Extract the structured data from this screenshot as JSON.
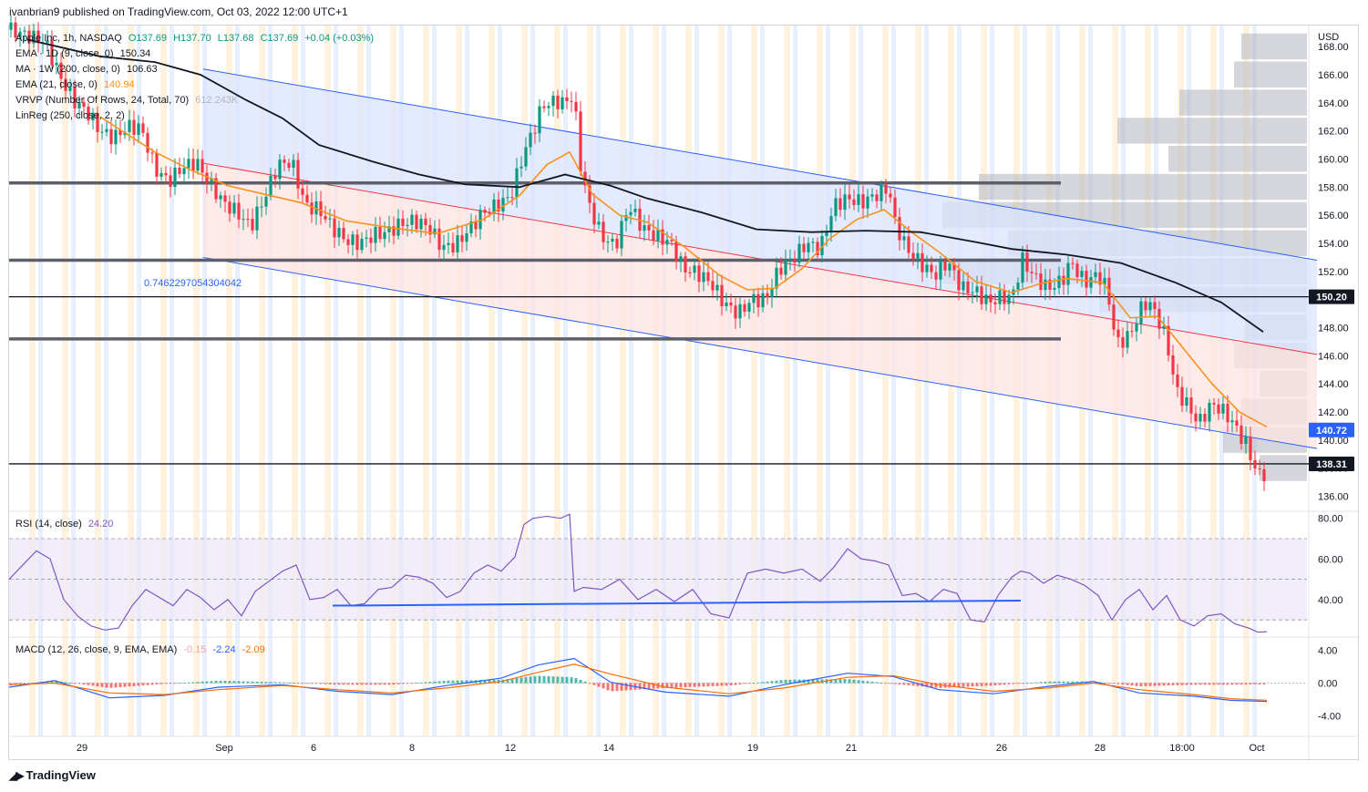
{
  "header": {
    "publish_line": "ivanbrian9 published on TradingView.com, Oct 03, 2022 12:00 UTC+1"
  },
  "legend": {
    "symbol": "Apple Inc, 1h, NASDAQ",
    "ohlc": {
      "open": "O137.69",
      "high": "H137.70",
      "low": "L137.68",
      "close": "C137.69",
      "change": "+0.04 (+0.03%)"
    },
    "ema9": {
      "label": "EMA · 1D (9, close, 0)",
      "value": "150.34"
    },
    "ma200": {
      "label": "MA · 1W (200, close, 0)",
      "value": "106.63"
    },
    "ema21": {
      "label": "EMA (21, close, 0)",
      "value": "140.94"
    },
    "vrvp": {
      "label": "VRVP (Number Of Rows, 24, Total, 70)",
      "value": "612.243K"
    },
    "linreg": {
      "label": "LinReg (250, close, 2, 2)"
    }
  },
  "rsi_legend": {
    "label": "RSI (14, close)",
    "value": "24.20"
  },
  "macd_legend": {
    "label": "MACD (12, 26, close, 9, EMA, EMA)",
    "hist": "-0.15",
    "macd": "-2.24",
    "signal": "-2.09"
  },
  "annotations": {
    "linreg_coef": "0.7462297054304042"
  },
  "footer": {
    "brand": "TradingView",
    "logo_icon": "tradingview-logo-icon"
  },
  "colors": {
    "bull": "#089981",
    "bear": "#f23645",
    "ema21": "#f7931a",
    "ma": "#131722",
    "channel_line": "#2962ff",
    "band_blue": "#dbe4ff",
    "band_red": "#ffe3e3",
    "rsi_line": "#7e57c2",
    "macd_line": "#2962ff",
    "signal_line": "#ff6d00",
    "vp_bar": "#b2b5be"
  },
  "chart_data": [
    {
      "type": "candlestick",
      "panel": "price",
      "currency": "USD",
      "y_ticks": [
        168,
        166,
        164,
        162,
        160,
        158,
        156,
        154,
        152,
        150,
        148,
        146,
        144,
        142,
        140,
        138,
        136
      ],
      "ylim": [
        135,
        169.5
      ],
      "x_ticks": [
        "29",
        "Sep",
        "6",
        "8",
        "12",
        "14",
        "19",
        "21",
        "26",
        "28",
        "18:00",
        "Oct"
      ],
      "price_labels": [
        "150.20",
        "140.72",
        "138.31"
      ],
      "horizontal_levels": [
        {
          "price": 158.3,
          "style": "thick-gray"
        },
        {
          "price": 152.8,
          "style": "thick-gray"
        },
        {
          "price": 147.2,
          "style": "thick-gray"
        },
        {
          "price": 150.2,
          "style": "thin-black"
        },
        {
          "price": 138.31,
          "style": "thin-black"
        }
      ],
      "close_path": [
        [
          0,
          169.2
        ],
        [
          20,
          168.8
        ],
        [
          40,
          168.3
        ],
        [
          55,
          166
        ],
        [
          70,
          164.2
        ],
        [
          85,
          163.4
        ],
        [
          100,
          162
        ],
        [
          115,
          161.5
        ],
        [
          130,
          162.3
        ],
        [
          145,
          162.2
        ],
        [
          160,
          159.3
        ],
        [
          175,
          158.4
        ],
        [
          190,
          159.4
        ],
        [
          205,
          159.8
        ],
        [
          220,
          158.3
        ],
        [
          235,
          156.9
        ],
        [
          250,
          156.2
        ],
        [
          265,
          155.2
        ],
        [
          280,
          157.2
        ],
        [
          295,
          159.6
        ],
        [
          310,
          159.8
        ],
        [
          325,
          156.7
        ],
        [
          340,
          156.4
        ],
        [
          355,
          155.1
        ],
        [
          370,
          154.2
        ],
        [
          385,
          154.0
        ],
        [
          400,
          154.6
        ],
        [
          415,
          154.8
        ],
        [
          430,
          155.4
        ],
        [
          445,
          155.6
        ],
        [
          460,
          155.2
        ],
        [
          475,
          153.7
        ],
        [
          490,
          153.9
        ],
        [
          505,
          155.0
        ],
        [
          520,
          156.2
        ],
        [
          535,
          156.7
        ],
        [
          550,
          157.3
        ],
        [
          565,
          160.5
        ],
        [
          575,
          162.0
        ],
        [
          585,
          163.8
        ],
        [
          600,
          164.1
        ],
        [
          610,
          164.0
        ],
        [
          620,
          164.6
        ],
        [
          625,
          160.2
        ],
        [
          635,
          157.0
        ],
        [
          650,
          154.5
        ],
        [
          665,
          153.8
        ],
        [
          680,
          156.7
        ],
        [
          695,
          155.1
        ],
        [
          710,
          154.5
        ],
        [
          725,
          154.1
        ],
        [
          740,
          152.2
        ],
        [
          755,
          151.9
        ],
        [
          770,
          151.2
        ],
        [
          785,
          149.7
        ],
        [
          800,
          149.0
        ],
        [
          815,
          150.0
        ],
        [
          830,
          150.0
        ],
        [
          845,
          152.2
        ],
        [
          860,
          152.9
        ],
        [
          875,
          154.0
        ],
        [
          890,
          153.6
        ],
        [
          905,
          156.7
        ],
        [
          920,
          157.2
        ],
        [
          935,
          156.9
        ],
        [
          950,
          157.4
        ],
        [
          965,
          158.0
        ],
        [
          972,
          155.5
        ],
        [
          985,
          153.6
        ],
        [
          1000,
          152.6
        ],
        [
          1015,
          151.7
        ],
        [
          1030,
          152.7
        ],
        [
          1045,
          150.8
        ],
        [
          1060,
          150.6
        ],
        [
          1075,
          149.8
        ],
        [
          1090,
          150.2
        ],
        [
          1100,
          150.1
        ],
        [
          1112,
          152.8
        ],
        [
          1125,
          151.6
        ],
        [
          1140,
          150.8
        ],
        [
          1155,
          151.3
        ],
        [
          1165,
          152.7
        ],
        [
          1180,
          151.2
        ],
        [
          1195,
          151.8
        ],
        [
          1205,
          150.7
        ],
        [
          1215,
          146.8
        ],
        [
          1230,
          147.5
        ],
        [
          1245,
          149.8
        ],
        [
          1255,
          149.5
        ],
        [
          1270,
          147.1
        ],
        [
          1280,
          143.6
        ],
        [
          1295,
          142.3
        ],
        [
          1305,
          141.2
        ],
        [
          1320,
          142.6
        ],
        [
          1335,
          141.9
        ],
        [
          1345,
          141.0
        ],
        [
          1358,
          139.6
        ],
        [
          1365,
          138.3
        ],
        [
          1372,
          137.5
        ],
        [
          1380,
          137.69
        ]
      ],
      "ema21_path": [
        [
          100,
          163
        ],
        [
          160,
          160.5
        ],
        [
          200,
          159.2
        ],
        [
          240,
          158.1
        ],
        [
          280,
          157.5
        ],
        [
          320,
          156.9
        ],
        [
          370,
          155.6
        ],
        [
          420,
          155.1
        ],
        [
          470,
          154.7
        ],
        [
          520,
          155.7
        ],
        [
          560,
          157.4
        ],
        [
          590,
          159.6
        ],
        [
          615,
          160.5
        ],
        [
          640,
          157.5
        ],
        [
          670,
          156.0
        ],
        [
          700,
          155.5
        ],
        [
          740,
          153.8
        ],
        [
          780,
          151.7
        ],
        [
          810,
          150.7
        ],
        [
          840,
          150.8
        ],
        [
          870,
          152.2
        ],
        [
          900,
          154.3
        ],
        [
          930,
          155.7
        ],
        [
          960,
          156.4
        ],
        [
          990,
          154.8
        ],
        [
          1020,
          153.4
        ],
        [
          1060,
          151.3
        ],
        [
          1100,
          150.5
        ],
        [
          1130,
          151.1
        ],
        [
          1160,
          151.5
        ],
        [
          1200,
          151.2
        ],
        [
          1230,
          148.7
        ],
        [
          1260,
          148.8
        ],
        [
          1290,
          146.4
        ],
        [
          1320,
          144.0
        ],
        [
          1350,
          142.0
        ],
        [
          1380,
          140.94
        ]
      ],
      "ma_path": [
        [
          20,
          168.5
        ],
        [
          100,
          167.3
        ],
        [
          160,
          166.9
        ],
        [
          210,
          166.0
        ],
        [
          260,
          164.2
        ],
        [
          300,
          162.9
        ],
        [
          340,
          161.0
        ],
        [
          400,
          159.8
        ],
        [
          450,
          158.9
        ],
        [
          500,
          158.2
        ],
        [
          560,
          158.0
        ],
        [
          610,
          158.9
        ],
        [
          660,
          158.1
        ],
        [
          700,
          157.2
        ],
        [
          760,
          156.2
        ],
        [
          820,
          155.0
        ],
        [
          880,
          154.8
        ],
        [
          940,
          154.9
        ],
        [
          1000,
          154.8
        ],
        [
          1060,
          154.1
        ],
        [
          1100,
          153.6
        ],
        [
          1160,
          153.2
        ],
        [
          1220,
          152.6
        ],
        [
          1280,
          151.2
        ],
        [
          1330,
          149.8
        ],
        [
          1376,
          147.7
        ]
      ],
      "channel": {
        "upper": [
          [
            213,
            166.4
          ],
          [
            1435,
            152.8
          ]
        ],
        "middle": [
          [
            213,
            159.7
          ],
          [
            1435,
            146.1
          ]
        ],
        "lower": [
          [
            213,
            153.0
          ],
          [
            1435,
            139.4
          ]
        ]
      },
      "rsi_trendline": [
        [
          355,
          37
        ],
        [
          1110,
          39.5
        ]
      ],
      "volume_profile": [
        {
          "price": 168.0,
          "width": 0.18
        },
        {
          "price": 166.0,
          "width": 0.2
        },
        {
          "price": 164.0,
          "width": 0.35
        },
        {
          "price": 162.0,
          "width": 0.52
        },
        {
          "price": 160.0,
          "width": 0.38
        },
        {
          "price": 158.0,
          "width": 0.9
        },
        {
          "price": 156.0,
          "width": 1.0
        },
        {
          "price": 154.0,
          "width": 0.82
        },
        {
          "price": 152.0,
          "width": 1.0
        },
        {
          "price": 150.0,
          "width": 0.57
        },
        {
          "price": 148.0,
          "width": 0.17
        },
        {
          "price": 146.0,
          "width": 0.2
        },
        {
          "price": 144.0,
          "width": 0.13
        },
        {
          "price": 142.0,
          "width": 0.18
        },
        {
          "price": 140.0,
          "width": 0.23
        },
        {
          "price": 138.0,
          "width": 0.13
        }
      ]
    },
    {
      "type": "line",
      "panel": "rsi",
      "y_ticks": [
        80,
        60,
        40
      ],
      "bands": [
        30,
        50,
        70
      ],
      "ylim": [
        22,
        83
      ],
      "x": [
        0,
        15,
        30,
        45,
        60,
        75,
        90,
        105,
        120,
        135,
        150,
        165,
        180,
        195,
        210,
        225,
        240,
        255,
        270,
        285,
        300,
        315,
        330,
        345,
        360,
        375,
        390,
        405,
        420,
        435,
        450,
        465,
        480,
        495,
        510,
        525,
        540,
        555,
        565,
        575,
        590,
        605,
        615,
        620,
        630,
        650,
        670,
        690,
        710,
        730,
        750,
        770,
        790,
        810,
        830,
        850,
        870,
        890,
        905,
        920,
        935,
        950,
        965,
        980,
        995,
        1010,
        1025,
        1040,
        1055,
        1070,
        1085,
        1100,
        1110,
        1120,
        1135,
        1150,
        1165,
        1180,
        1195,
        1210,
        1225,
        1240,
        1255,
        1270,
        1285,
        1300,
        1315,
        1330,
        1345,
        1360,
        1370,
        1380
      ],
      "values": [
        50,
        57,
        64,
        60,
        40,
        32,
        27,
        25,
        26,
        37,
        45,
        41,
        37,
        45,
        41,
        35,
        40,
        32,
        44,
        49,
        54,
        57,
        40,
        41,
        45,
        37,
        38,
        45,
        46,
        52,
        51,
        48,
        41,
        44,
        53,
        57,
        54,
        61,
        77,
        80,
        81,
        80,
        82,
        44,
        46,
        45,
        50,
        40,
        45,
        39,
        45,
        33,
        31,
        53,
        55,
        53,
        55,
        49,
        56,
        65,
        60,
        59,
        57,
        42,
        43,
        39,
        45,
        43,
        30,
        29,
        42,
        51,
        54,
        53,
        48,
        52,
        50,
        47,
        42,
        30,
        40,
        45,
        35,
        42,
        30,
        27,
        32,
        33,
        28,
        26,
        24,
        24.2
      ]
    },
    {
      "type": "line",
      "panel": "macd",
      "y_ticks": [
        4.0,
        0.0,
        -4.0
      ],
      "ylim": [
        -6.5,
        5.5
      ],
      "series": [
        {
          "name": "MACD",
          "x": [
            0,
            50,
            110,
            170,
            230,
            300,
            360,
            420,
            480,
            540,
            580,
            620,
            660,
            720,
            790,
            850,
            920,
            970,
            1020,
            1080,
            1140,
            1190,
            1240,
            1300,
            1340,
            1380
          ],
          "values": [
            -0.5,
            0.3,
            -1.8,
            -1.5,
            -0.5,
            -0.2,
            -1.0,
            -1.4,
            -0.3,
            0.6,
            2.2,
            3.0,
            0.1,
            -1.1,
            -1.6,
            -0.2,
            1.2,
            0.8,
            -0.8,
            -1.3,
            -0.4,
            0.2,
            -1.2,
            -1.6,
            -2.1,
            -2.24
          ]
        },
        {
          "name": "Signal",
          "x": [
            0,
            50,
            110,
            170,
            230,
            300,
            360,
            420,
            480,
            540,
            580,
            620,
            660,
            720,
            790,
            850,
            920,
            970,
            1020,
            1080,
            1140,
            1190,
            1240,
            1300,
            1340,
            1380
          ],
          "values": [
            -0.2,
            0.0,
            -1.2,
            -1.4,
            -0.8,
            -0.3,
            -0.8,
            -1.2,
            -0.6,
            0.2,
            1.3,
            2.3,
            1.1,
            -0.5,
            -1.3,
            -0.6,
            0.7,
            0.9,
            -0.2,
            -1.0,
            -0.6,
            0.0,
            -0.8,
            -1.4,
            -1.9,
            -2.09
          ]
        }
      ]
    }
  ]
}
